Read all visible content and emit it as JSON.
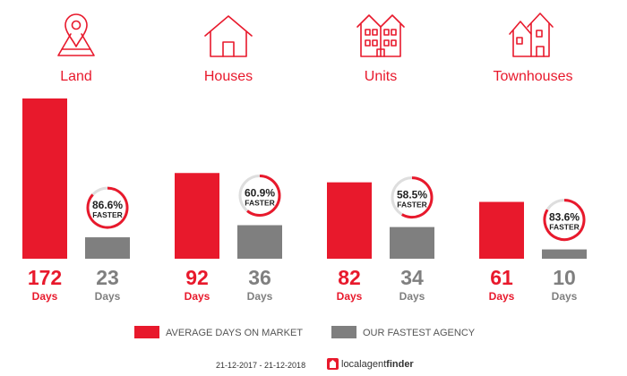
{
  "chart_data": {
    "type": "bar",
    "categories": [
      "Land",
      "Houses",
      "Units",
      "Townhouses"
    ],
    "icons": [
      "map-pin-icon",
      "house-icon",
      "units-icon",
      "townhouses-icon"
    ],
    "series": [
      {
        "name": "AVERAGE DAYS ON MARKET",
        "values": [
          172,
          92,
          82,
          61
        ],
        "color": "#e8192c"
      },
      {
        "name": "OUR FASTEST AGENCY",
        "values": [
          23,
          36,
          34,
          10
        ],
        "color": "#7f7f7f"
      }
    ],
    "faster_pct": [
      "86.6%",
      "60.9%",
      "58.5%",
      "83.6%"
    ],
    "faster_fraction": [
      0.866,
      0.609,
      0.585,
      0.836
    ],
    "faster_label": "FASTER",
    "unit_label": "Days",
    "ylim": [
      0,
      172
    ],
    "grid": false,
    "legend_position": "bottom"
  },
  "footer": {
    "date_range": "21-12-2017 - 21-12-2018",
    "brand_regular": "localagent",
    "brand_bold": "finder"
  }
}
